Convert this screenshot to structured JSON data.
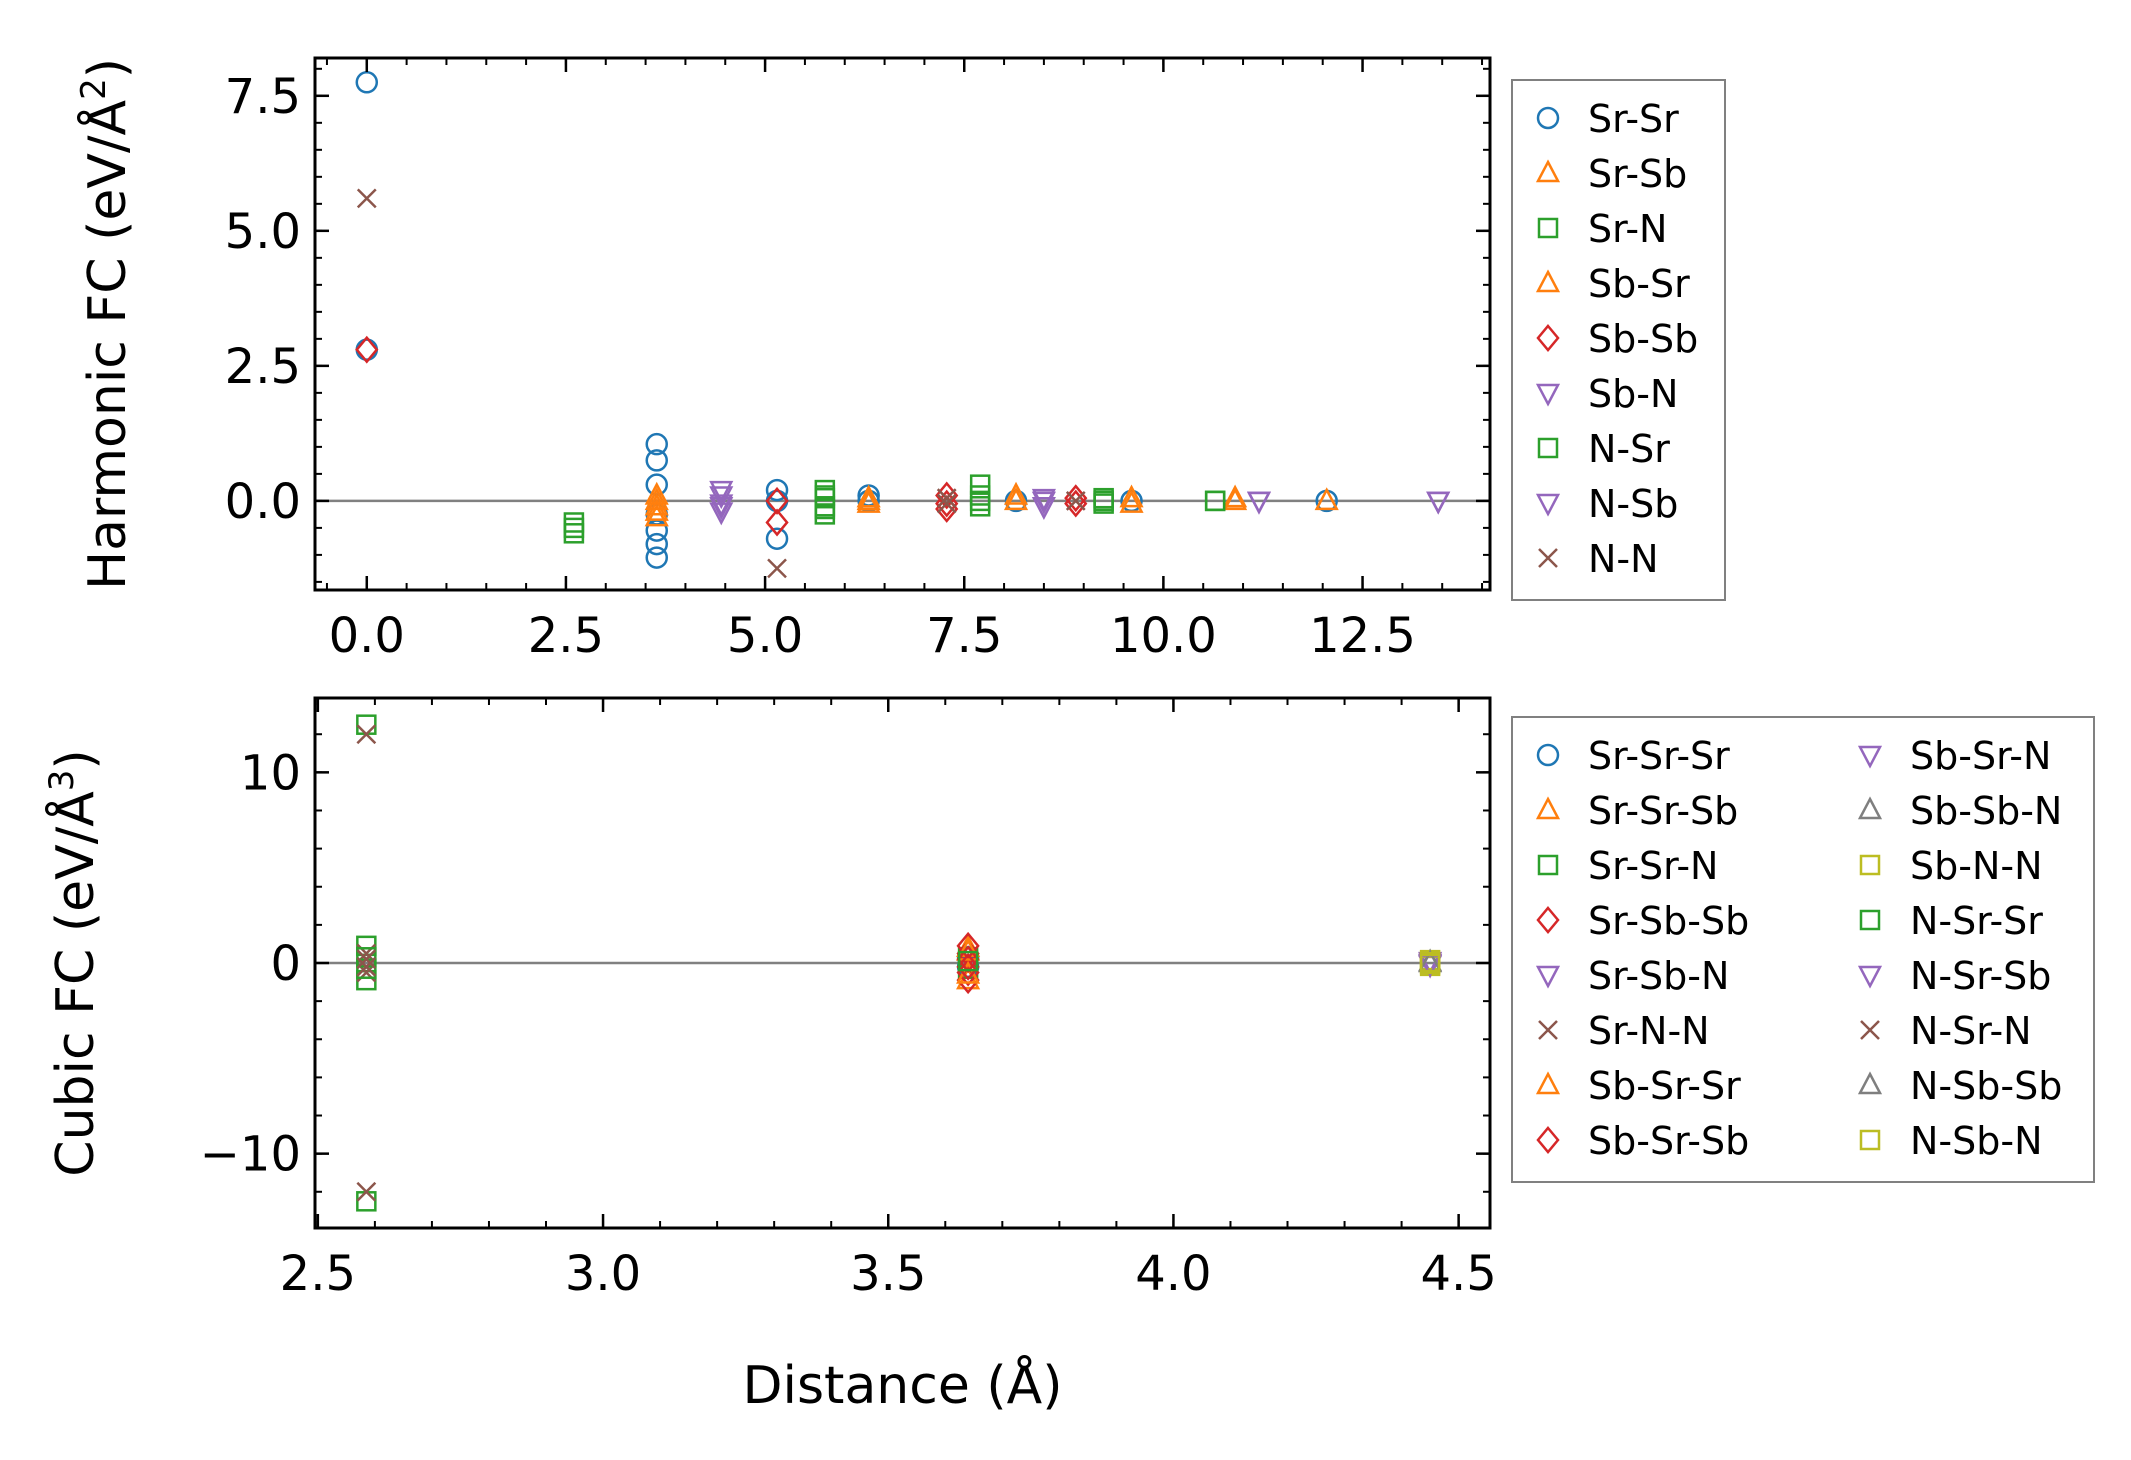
{
  "chart_data": [
    {
      "type": "scatter",
      "panel": "top",
      "title": "",
      "xlabel": "",
      "ylabel": "Harmonic FC (eV/Å",
      "ylabel_exponent": "2",
      "ylabel_close": ")",
      "xlim": [
        -0.65,
        14.1
      ],
      "ylim": [
        -1.65,
        8.2
      ],
      "xticks": [
        0.0,
        2.5,
        5.0,
        7.5,
        10.0,
        12.5
      ],
      "xtick_labels": [
        "0.0",
        "2.5",
        "5.0",
        "7.5",
        "10.0",
        "12.5"
      ],
      "yticks": [
        0.0,
        2.5,
        5.0,
        7.5
      ],
      "ytick_labels": [
        "0.0",
        "2.5",
        "5.0",
        "7.5"
      ],
      "zero_line": true,
      "legend_position": "outside-right",
      "series": [
        {
          "name": "Sr-Sr",
          "marker": "circle",
          "color": "#1f77b4",
          "points": [
            [
              0.0,
              7.75
            ],
            [
              0.0,
              2.8
            ],
            [
              3.64,
              1.05
            ],
            [
              3.64,
              0.75
            ],
            [
              3.64,
              0.3
            ],
            [
              3.64,
              -0.25
            ],
            [
              3.64,
              -0.55
            ],
            [
              3.64,
              -0.8
            ],
            [
              3.64,
              -1.05
            ],
            [
              5.15,
              0.2
            ],
            [
              5.15,
              0.0
            ],
            [
              5.15,
              -0.7
            ],
            [
              6.3,
              0.1
            ],
            [
              6.3,
              0.0
            ],
            [
              8.15,
              0.0
            ],
            [
              9.6,
              0.0
            ],
            [
              12.05,
              0.0
            ]
          ]
        },
        {
          "name": "Sr-Sb",
          "marker": "triangle-up",
          "color": "#ff7f0e",
          "points": [
            [
              3.64,
              0.1
            ],
            [
              3.64,
              -0.1
            ],
            [
              3.64,
              -0.3
            ],
            [
              6.3,
              0.05
            ],
            [
              6.3,
              -0.05
            ],
            [
              8.15,
              0.1
            ],
            [
              9.6,
              0.05
            ],
            [
              10.9,
              0.05
            ],
            [
              12.05,
              0.0
            ]
          ]
        },
        {
          "name": "Sr-N",
          "marker": "square",
          "color": "#2ca02c",
          "points": [
            [
              2.6,
              -0.4
            ],
            [
              2.6,
              -0.6
            ],
            [
              5.75,
              0.2
            ],
            [
              5.75,
              0.05
            ],
            [
              5.75,
              -0.1
            ],
            [
              5.75,
              -0.25
            ],
            [
              7.7,
              0.3
            ],
            [
              7.7,
              0.1
            ],
            [
              7.7,
              -0.1
            ],
            [
              9.25,
              0.05
            ],
            [
              9.25,
              -0.05
            ],
            [
              10.65,
              0.0
            ]
          ]
        },
        {
          "name": "Sb-Sr",
          "marker": "triangle-up",
          "color": "#ff7f0e",
          "points": [
            [
              3.64,
              0.0
            ],
            [
              3.64,
              -0.2
            ],
            [
              6.3,
              0.0
            ],
            [
              8.15,
              0.0
            ],
            [
              9.6,
              -0.05
            ],
            [
              10.9,
              0.0
            ]
          ]
        },
        {
          "name": "Sb-Sb",
          "marker": "diamond",
          "color": "#d62728",
          "points": [
            [
              0.0,
              2.8
            ],
            [
              5.15,
              0.0
            ],
            [
              5.15,
              -0.4
            ],
            [
              7.28,
              0.1
            ],
            [
              7.28,
              -0.05
            ],
            [
              7.28,
              -0.15
            ],
            [
              8.9,
              0.05
            ],
            [
              8.9,
              -0.05
            ]
          ]
        },
        {
          "name": "Sb-N",
          "marker": "triangle-down",
          "color": "#9467bd",
          "points": [
            [
              4.45,
              0.2
            ],
            [
              4.45,
              -0.05
            ],
            [
              4.45,
              -0.2
            ],
            [
              8.5,
              0.0
            ],
            [
              8.5,
              -0.1
            ],
            [
              11.2,
              0.0
            ],
            [
              13.45,
              0.0
            ]
          ]
        },
        {
          "name": "N-Sr",
          "marker": "square",
          "color": "#2ca02c",
          "points": [
            [
              2.6,
              -0.5
            ],
            [
              5.75,
              0.1
            ],
            [
              5.75,
              -0.15
            ],
            [
              7.7,
              0.0
            ],
            [
              9.25,
              0.0
            ],
            [
              10.65,
              0.0
            ]
          ]
        },
        {
          "name": "N-Sb",
          "marker": "triangle-down",
          "color": "#9467bd",
          "points": [
            [
              4.45,
              0.1
            ],
            [
              4.45,
              -0.1
            ],
            [
              8.5,
              0.05
            ],
            [
              11.2,
              0.0
            ],
            [
              13.45,
              0.0
            ]
          ]
        },
        {
          "name": "N-N",
          "marker": "x",
          "color": "#8c564b",
          "points": [
            [
              0.0,
              5.6
            ],
            [
              5.15,
              -1.25
            ],
            [
              7.28,
              0.05
            ],
            [
              7.28,
              -0.05
            ],
            [
              8.9,
              0.0
            ]
          ]
        }
      ]
    },
    {
      "type": "scatter",
      "panel": "bottom",
      "title": "",
      "xlabel": "Distance (Å)",
      "ylabel": "Cubic FC (eV/Å",
      "ylabel_exponent": "3",
      "ylabel_close": ")",
      "xlim": [
        2.495,
        4.555
      ],
      "ylim": [
        -13.9,
        13.9
      ],
      "xticks": [
        2.5,
        3.0,
        3.5,
        4.0,
        4.5
      ],
      "xtick_labels": [
        "2.5",
        "3.0",
        "3.5",
        "4.0",
        "4.5"
      ],
      "yticks": [
        -10,
        0,
        10
      ],
      "ytick_labels": [
        "−10",
        "0",
        "10"
      ],
      "zero_line": true,
      "legend_position": "outside-right",
      "legend_columns": 2,
      "series": [
        {
          "name": "Sr-Sr-Sr",
          "marker": "circle",
          "color": "#1f77b4",
          "points": [
            [
              3.64,
              0.3
            ],
            [
              3.64,
              -0.2
            ]
          ]
        },
        {
          "name": "Sr-Sr-Sb",
          "marker": "triangle-up",
          "color": "#ff7f0e",
          "points": [
            [
              3.64,
              0.8
            ],
            [
              3.64,
              -0.9
            ]
          ]
        },
        {
          "name": "Sr-Sr-N",
          "marker": "square",
          "color": "#2ca02c",
          "points": [
            [
              2.585,
              12.5
            ],
            [
              2.585,
              0.9
            ],
            [
              2.585,
              -0.9
            ],
            [
              2.585,
              -12.5
            ],
            [
              3.64,
              0.3
            ],
            [
              3.64,
              -0.3
            ]
          ]
        },
        {
          "name": "Sr-Sb-Sb",
          "marker": "diamond",
          "color": "#d62728",
          "points": [
            [
              3.64,
              0.9
            ],
            [
              3.64,
              0.5
            ],
            [
              3.64,
              -0.5
            ],
            [
              3.64,
              -0.9
            ]
          ]
        },
        {
          "name": "Sr-Sb-N",
          "marker": "triangle-down",
          "color": "#9467bd",
          "points": [
            [
              4.45,
              0.1
            ],
            [
              4.45,
              -0.1
            ]
          ]
        },
        {
          "name": "Sr-N-N",
          "marker": "x",
          "color": "#8c564b",
          "points": [
            [
              2.585,
              12.0
            ],
            [
              2.585,
              0.5
            ],
            [
              2.585,
              -0.5
            ],
            [
              2.585,
              -12.0
            ]
          ]
        },
        {
          "name": "Sb-Sr-Sr",
          "marker": "triangle-up",
          "color": "#ff7f0e",
          "points": [
            [
              3.64,
              0.6
            ],
            [
              3.64,
              -0.6
            ]
          ]
        },
        {
          "name": "Sb-Sr-Sb",
          "marker": "diamond",
          "color": "#d62728",
          "points": [
            [
              3.64,
              0.2
            ],
            [
              3.64,
              -0.2
            ]
          ]
        },
        {
          "name": "Sb-Sr-N",
          "marker": "triangle-down",
          "color": "#9467bd",
          "points": [
            [
              4.45,
              0.0
            ]
          ]
        },
        {
          "name": "Sb-Sb-N",
          "marker": "triangle-up",
          "color": "#7f7f7f",
          "points": [
            [
              4.45,
              0.05
            ]
          ]
        },
        {
          "name": "Sb-N-N",
          "marker": "square",
          "color": "#bcbd22",
          "points": [
            [
              4.45,
              0.15
            ],
            [
              4.45,
              -0.15
            ]
          ]
        },
        {
          "name": "N-Sr-Sr",
          "marker": "square",
          "color": "#2ca02c",
          "points": [
            [
              2.585,
              0.3
            ],
            [
              2.585,
              -0.3
            ],
            [
              3.64,
              0.1
            ]
          ]
        },
        {
          "name": "N-Sr-Sb",
          "marker": "triangle-down",
          "color": "#9467bd",
          "points": [
            [
              4.45,
              -0.05
            ]
          ]
        },
        {
          "name": "N-Sr-N",
          "marker": "x",
          "color": "#8c564b",
          "points": [
            [
              2.585,
              0.2
            ],
            [
              2.585,
              -0.2
            ]
          ]
        },
        {
          "name": "N-Sb-Sb",
          "marker": "triangle-up",
          "color": "#7f7f7f",
          "points": [
            [
              4.45,
              0.0
            ]
          ]
        },
        {
          "name": "N-Sb-N",
          "marker": "square",
          "color": "#bcbd22",
          "points": [
            [
              4.45,
              0.05
            ],
            [
              4.45,
              -0.05
            ]
          ]
        }
      ]
    }
  ]
}
